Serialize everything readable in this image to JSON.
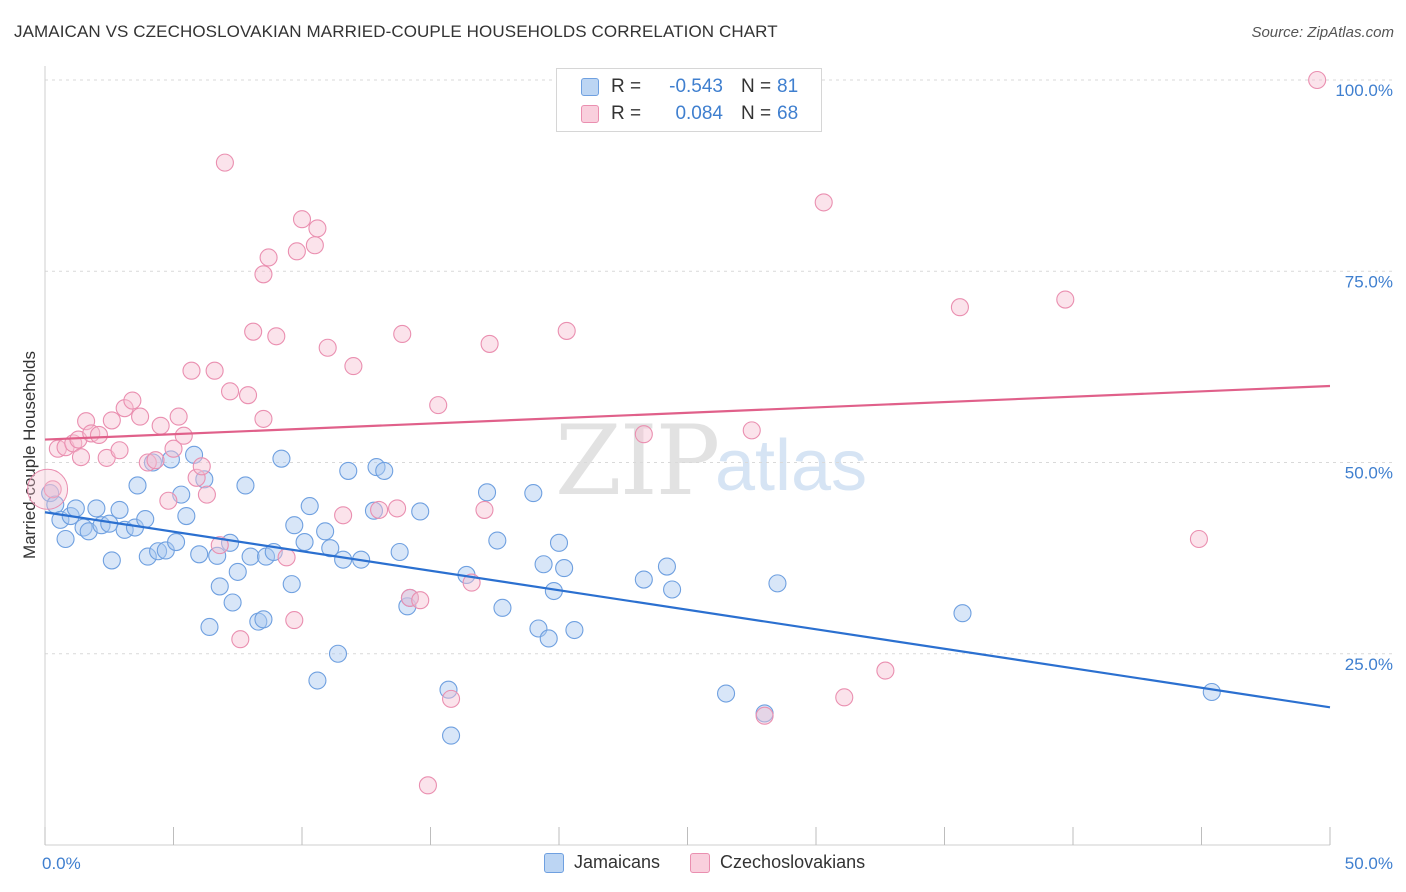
{
  "title": "JAMAICAN VS CZECHOSLOVAKIAN MARRIED-COUPLE HOUSEHOLDS CORRELATION CHART",
  "source": "Source: ZipAtlas.com",
  "watermark": {
    "zip": "ZIP",
    "atlas": "atlas"
  },
  "colors": {
    "blue_fill": "#a9c8f0",
    "blue_stroke": "#6fa0e0",
    "blue_line": "#2b70d0",
    "pink_fill": "#f6c0d2",
    "pink_stroke": "#ea8fb0",
    "pink_line": "#e0608a",
    "tick_text": "#3f7fcf",
    "grid": "#d9d9d9"
  },
  "legend_top": {
    "rows": [
      {
        "r_label": "R =",
        "r_value": "-0.543",
        "n_label": "N =",
        "n_value": "81",
        "color": "blue"
      },
      {
        "r_label": "R =",
        "r_value": "0.084",
        "n_label": "N =",
        "n_value": "68",
        "color": "pink"
      }
    ]
  },
  "legend_bottom": [
    {
      "label": "Jamaicans",
      "color": "blue"
    },
    {
      "label": "Czechoslovakians",
      "color": "pink"
    }
  ],
  "chart_data": {
    "type": "scatter",
    "title": "JAMAICAN VS CZECHOSLOVAKIAN MARRIED-COUPLE HOUSEHOLDS CORRELATION CHART",
    "xlabel": "",
    "ylabel": "Married-couple Households",
    "xlim": [
      0,
      50
    ],
    "ylim": [
      0,
      102
    ],
    "x_tick_labels": [
      "0.0%",
      "50.0%"
    ],
    "y_ticks": [
      25,
      50,
      75,
      100
    ],
    "y_tick_labels": [
      "25.0%",
      "50.0%",
      "75.0%",
      "100.0%"
    ],
    "grid": true,
    "legend_position": "top-center",
    "series": [
      {
        "name": "Jamaicans",
        "color": "blue",
        "trend": [
          [
            0,
            43.5
          ],
          [
            50,
            18.0
          ]
        ],
        "points": [
          [
            0.2,
            46
          ],
          [
            0.4,
            44.5
          ],
          [
            0.6,
            42.5
          ],
          [
            0.8,
            40
          ],
          [
            1,
            43
          ],
          [
            1.2,
            44
          ],
          [
            1.5,
            41.5
          ],
          [
            1.7,
            41
          ],
          [
            2,
            44
          ],
          [
            2.2,
            41.8
          ],
          [
            2.5,
            42
          ],
          [
            2.6,
            37.2
          ],
          [
            2.9,
            43.8
          ],
          [
            3.1,
            41.2
          ],
          [
            3.5,
            41.5
          ],
          [
            3.6,
            47
          ],
          [
            3.9,
            42.6
          ],
          [
            4,
            37.7
          ],
          [
            4.2,
            50
          ],
          [
            4.4,
            38.4
          ],
          [
            4.7,
            38.5
          ],
          [
            4.9,
            50.4
          ],
          [
            5.1,
            39.6
          ],
          [
            5.3,
            45.8
          ],
          [
            5.5,
            43
          ],
          [
            5.8,
            51
          ],
          [
            6,
            38
          ],
          [
            6.2,
            47.8
          ],
          [
            6.4,
            28.5
          ],
          [
            6.7,
            37.8
          ],
          [
            6.8,
            33.8
          ],
          [
            7.2,
            39.5
          ],
          [
            7.3,
            31.7
          ],
          [
            7.5,
            35.7
          ],
          [
            7.8,
            47
          ],
          [
            8,
            37.7
          ],
          [
            8.3,
            29.2
          ],
          [
            8.5,
            29.5
          ],
          [
            8.6,
            37.7
          ],
          [
            8.9,
            38.3
          ],
          [
            9.2,
            50.5
          ],
          [
            9.6,
            34.1
          ],
          [
            9.7,
            41.8
          ],
          [
            10.1,
            39.6
          ],
          [
            10.3,
            44.3
          ],
          [
            10.6,
            21.5
          ],
          [
            10.9,
            41
          ],
          [
            11.1,
            38.8
          ],
          [
            11.4,
            25
          ],
          [
            11.6,
            37.3
          ],
          [
            11.8,
            48.9
          ],
          [
            12.3,
            37.3
          ],
          [
            12.8,
            43.7
          ],
          [
            12.9,
            49.4
          ],
          [
            13.2,
            48.9
          ],
          [
            13.8,
            38.3
          ],
          [
            14.1,
            31.2
          ],
          [
            14.2,
            32.3
          ],
          [
            14.6,
            43.6
          ],
          [
            15.7,
            20.3
          ],
          [
            15.8,
            14.3
          ],
          [
            16.4,
            35.3
          ],
          [
            17.2,
            46.1
          ],
          [
            17.6,
            39.8
          ],
          [
            17.8,
            31
          ],
          [
            19,
            46
          ],
          [
            19.2,
            28.3
          ],
          [
            19.4,
            36.7
          ],
          [
            19.6,
            27
          ],
          [
            19.8,
            33.2
          ],
          [
            20,
            39.5
          ],
          [
            20.2,
            36.2
          ],
          [
            20.6,
            28.1
          ],
          [
            23.3,
            34.7
          ],
          [
            24.2,
            36.4
          ],
          [
            24.4,
            33.4
          ],
          [
            26.5,
            19.8
          ],
          [
            28,
            17.2
          ],
          [
            28.5,
            34.2
          ],
          [
            35.7,
            30.3
          ],
          [
            45.4,
            20
          ]
        ]
      },
      {
        "name": "Czechoslovakians",
        "color": "pink",
        "trend": [
          [
            0,
            53.0
          ],
          [
            50,
            60.0
          ]
        ],
        "points": [
          [
            0.3,
            46.5
          ],
          [
            0.5,
            51.8
          ],
          [
            0.8,
            52
          ],
          [
            1.1,
            52.5
          ],
          [
            1.3,
            53
          ],
          [
            1.4,
            50.7
          ],
          [
            1.6,
            55.4
          ],
          [
            1.8,
            53.8
          ],
          [
            2.1,
            53.6
          ],
          [
            2.4,
            50.6
          ],
          [
            2.6,
            55.5
          ],
          [
            2.9,
            51.6
          ],
          [
            3.1,
            57.1
          ],
          [
            3.4,
            58.1
          ],
          [
            3.7,
            56
          ],
          [
            4,
            50
          ],
          [
            4.3,
            50.3
          ],
          [
            4.5,
            54.8
          ],
          [
            4.8,
            45
          ],
          [
            5,
            51.8
          ],
          [
            5.2,
            56
          ],
          [
            5.4,
            53.5
          ],
          [
            5.7,
            62
          ],
          [
            5.9,
            48
          ],
          [
            6.1,
            49.5
          ],
          [
            6.3,
            45.8
          ],
          [
            6.6,
            62
          ],
          [
            6.8,
            39.2
          ],
          [
            7,
            89.2
          ],
          [
            7.2,
            59.3
          ],
          [
            7.6,
            26.9
          ],
          [
            7.9,
            58.8
          ],
          [
            8.1,
            67.1
          ],
          [
            8.5,
            74.6
          ],
          [
            8.5,
            55.7
          ],
          [
            8.7,
            76.8
          ],
          [
            9,
            66.5
          ],
          [
            9.4,
            37.6
          ],
          [
            9.7,
            29.4
          ],
          [
            9.8,
            77.6
          ],
          [
            10,
            81.8
          ],
          [
            10.5,
            78.4
          ],
          [
            10.6,
            80.6
          ],
          [
            11,
            65
          ],
          [
            11.6,
            43.1
          ],
          [
            12,
            62.6
          ],
          [
            13,
            43.8
          ],
          [
            13.7,
            44
          ],
          [
            13.9,
            66.8
          ],
          [
            14.2,
            32.3
          ],
          [
            14.6,
            32
          ],
          [
            14.9,
            7.8
          ],
          [
            15.3,
            57.5
          ],
          [
            15.8,
            19.1
          ],
          [
            16.6,
            34.3
          ],
          [
            17.1,
            43.8
          ],
          [
            17.3,
            65.5
          ],
          [
            20.3,
            67.2
          ],
          [
            23.3,
            53.7
          ],
          [
            27.5,
            54.2
          ],
          [
            28,
            16.9
          ],
          [
            30.3,
            84
          ],
          [
            31.1,
            19.3
          ],
          [
            32.7,
            22.8
          ],
          [
            35.6,
            70.3
          ],
          [
            39.7,
            71.3
          ],
          [
            44.9,
            40
          ],
          [
            49.5,
            100
          ]
        ]
      }
    ]
  }
}
